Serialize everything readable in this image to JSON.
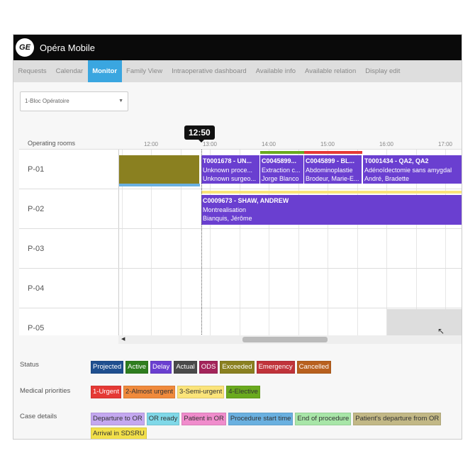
{
  "app": {
    "title": "Opéra Mobile",
    "logo": "GE"
  },
  "tabs": [
    {
      "label": "Requests"
    },
    {
      "label": "Calendar"
    },
    {
      "label": "Monitor",
      "active": true
    },
    {
      "label": "Family View"
    },
    {
      "label": "Intraoperative dashboard"
    },
    {
      "label": "Available info"
    },
    {
      "label": "Available relation"
    },
    {
      "label": "Display edit"
    }
  ],
  "selector": {
    "value": "1-Bloc Opératoire"
  },
  "timeline": {
    "now": "12:50",
    "rooms_header": "Operating rooms",
    "ticks": [
      "12:00",
      "13:00",
      "14:00",
      "15:00",
      "16:00",
      "17:00"
    ],
    "rooms": [
      "P-01",
      "P-02",
      "P-03",
      "P-04",
      "P-05"
    ],
    "cases": [
      {
        "title": "T0001678 - UN...",
        "procedure": "Unknown proce...",
        "surgeon": "Unknown surgeo..."
      },
      {
        "title": "C0045899...",
        "procedure": "Extraction c...",
        "surgeon": "Jorge Blanco"
      },
      {
        "title": "C0045899 - BL...",
        "procedure": "Abdominoplastie",
        "surgeon": "Brodeur, Marie-E..."
      },
      {
        "title": "T0001434 - QA2, QA2",
        "procedure": "Adénoïdectomie sans amygdal",
        "surgeon": "André, Bradette"
      },
      {
        "title": "C0009673 - SHAW, ANDREW",
        "procedure": "Montrealisation",
        "surgeon": "Bianquis, Jérôme"
      }
    ]
  },
  "legend": {
    "status": {
      "label": "Status",
      "items": [
        {
          "t": "Projected",
          "c": "#1f4f8f"
        },
        {
          "t": "Active",
          "c": "#2e7d1e"
        },
        {
          "t": "Delay",
          "c": "#6a3fd0"
        },
        {
          "t": "Actual",
          "c": "#4a4a4a"
        },
        {
          "t": "ODS",
          "c": "#a3245a"
        },
        {
          "t": "Exceeded",
          "c": "#8a8020"
        },
        {
          "t": "Emergency",
          "c": "#c0333a"
        },
        {
          "t": "Cancelled",
          "c": "#b8601e"
        }
      ]
    },
    "priorities": {
      "label": "Medical priorities",
      "items": [
        {
          "t": "1-Urgent",
          "c": "#e53935"
        },
        {
          "t": "2-Almost urgent",
          "c": "#f08a3c"
        },
        {
          "t": "3-Semi-urgent",
          "c": "#fbe47a"
        },
        {
          "t": "4-Elective",
          "c": "#6aaa1e"
        }
      ]
    },
    "case_details": {
      "label": "Case details",
      "items": [
        {
          "t": "Departure to OR",
          "c": "#c4a8f0"
        },
        {
          "t": "OR ready",
          "c": "#7fd8e8"
        },
        {
          "t": "Patient in OR",
          "c": "#f08ccc"
        },
        {
          "t": "Procedure start time",
          "c": "#6ab0e0"
        },
        {
          "t": "End of procedure",
          "c": "#a8e6a8"
        },
        {
          "t": "Patient's departure from OR",
          "c": "#c2b886"
        },
        {
          "t": "Arrival in SDSRU",
          "c": "#f2e04a"
        }
      ]
    }
  }
}
